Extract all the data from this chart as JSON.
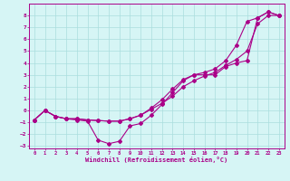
{
  "xlabel": "Windchill (Refroidissement éolien,°C)",
  "bg_color": "#d6f5f5",
  "grid_color": "#aadddd",
  "line_color": "#aa0088",
  "xlim": [
    -0.5,
    23.5
  ],
  "ylim": [
    -3.2,
    9.0
  ],
  "xticks": [
    0,
    1,
    2,
    3,
    4,
    5,
    6,
    7,
    8,
    9,
    10,
    11,
    12,
    13,
    14,
    15,
    16,
    17,
    18,
    19,
    20,
    21,
    22,
    23
  ],
  "yticks": [
    -3,
    -2,
    -1,
    0,
    1,
    2,
    3,
    4,
    5,
    6,
    7,
    8
  ],
  "line1_x": [
    0,
    1,
    2,
    3,
    4,
    5,
    6,
    7,
    8,
    9,
    10,
    11,
    12,
    13,
    14,
    15,
    16,
    17,
    18,
    19,
    20,
    21,
    22,
    23
  ],
  "line1_y": [
    -0.8,
    0.0,
    -0.5,
    -0.7,
    -0.8,
    -0.9,
    -2.5,
    -2.8,
    -2.6,
    -1.3,
    -1.1,
    -0.4,
    0.5,
    1.5,
    2.5,
    3.0,
    3.0,
    3.0,
    3.7,
    4.0,
    4.2,
    7.8,
    8.3,
    8.0
  ],
  "line2_x": [
    0,
    1,
    2,
    3,
    4,
    5,
    6,
    7,
    8,
    9,
    10,
    11,
    12,
    13,
    14,
    15,
    16,
    17,
    18,
    19,
    20,
    21,
    22,
    23
  ],
  "line2_y": [
    -0.8,
    0.0,
    -0.5,
    -0.7,
    -0.7,
    -0.8,
    -0.85,
    -0.9,
    -0.9,
    -0.7,
    -0.4,
    0.2,
    0.9,
    1.8,
    2.6,
    3.0,
    3.2,
    3.5,
    4.2,
    5.5,
    7.5,
    7.8,
    8.3,
    8.0
  ],
  "line3_x": [
    0,
    1,
    2,
    3,
    4,
    5,
    6,
    7,
    8,
    9,
    10,
    11,
    12,
    13,
    14,
    15,
    16,
    17,
    18,
    19,
    20,
    21,
    22,
    23
  ],
  "line3_y": [
    -0.8,
    0.0,
    -0.5,
    -0.7,
    -0.7,
    -0.8,
    -0.85,
    -0.9,
    -0.9,
    -0.7,
    -0.4,
    0.1,
    0.6,
    1.2,
    2.0,
    2.5,
    2.9,
    3.2,
    3.8,
    4.3,
    5.0,
    7.3,
    8.0,
    8.0
  ]
}
